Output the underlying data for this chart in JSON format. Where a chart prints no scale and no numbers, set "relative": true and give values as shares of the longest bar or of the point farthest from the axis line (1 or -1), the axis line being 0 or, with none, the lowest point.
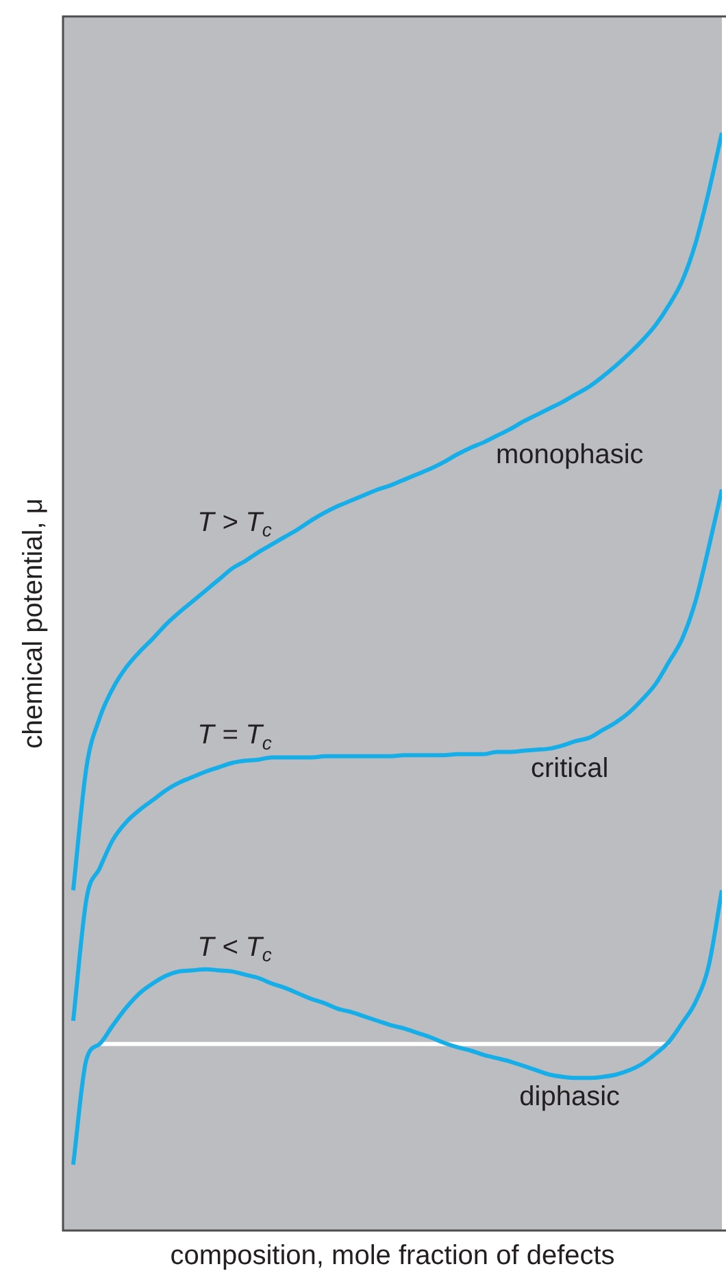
{
  "chart_data": {
    "type": "line",
    "xlabel": "composition, mole fraction of defects",
    "ylabel": "chemical potential, μ",
    "relative": true,
    "categories": [
      null,
      null,
      null,
      null,
      null,
      null,
      null,
      null,
      null,
      null,
      null,
      null,
      null,
      null,
      null,
      null,
      null,
      null,
      null,
      null,
      null,
      null,
      null,
      null,
      null,
      null,
      null,
      null,
      null,
      null,
      null,
      null,
      null,
      null,
      null,
      null,
      null,
      null,
      null,
      null,
      null,
      null,
      null,
      null,
      null,
      null,
      null,
      null,
      null,
      null
    ],
    "series": [
      {
        "name": "T > T$_{c}$",
        "color": "#16aee9",
        "values": [
          0.31,
          0.422,
          0.467,
          0.494,
          0.513,
          0.527,
          0.539,
          0.552,
          0.563,
          0.573,
          0.583,
          0.593,
          0.603,
          0.61,
          0.618,
          0.625,
          0.632,
          0.639,
          0.647,
          0.654,
          0.66,
          0.665,
          0.67,
          0.675,
          0.679,
          0.684,
          0.689,
          0.694,
          0.7,
          0.707,
          0.713,
          0.718,
          0.724,
          0.73,
          0.737,
          0.743,
          0.749,
          0.755,
          0.762,
          0.769,
          0.778,
          0.788,
          0.799,
          0.811,
          0.825,
          0.843,
          0.865,
          0.899,
          0.946,
          1
        ]
      },
      {
        "name": "T = T$_{c}$",
        "color": "#16aee9",
        "values": [
          0.191,
          0.302,
          0.33,
          0.356,
          0.372,
          0.383,
          0.392,
          0.401,
          0.408,
          0.413,
          0.418,
          0.422,
          0.426,
          0.428,
          0.429,
          0.431,
          0.431,
          0.431,
          0.431,
          0.432,
          0.432,
          0.432,
          0.432,
          0.432,
          0.432,
          0.433,
          0.433,
          0.433,
          0.433,
          0.434,
          0.434,
          0.434,
          0.436,
          0.436,
          0.437,
          0.438,
          0.439,
          0.442,
          0.446,
          0.449,
          0.456,
          0.463,
          0.472,
          0.484,
          0.498,
          0.518,
          0.539,
          0.573,
          0.622,
          0.675
        ]
      },
      {
        "name": "T < T$_{c}$",
        "color": "#16aee9",
        "values": [
          0.06,
          0.156,
          0.17,
          0.187,
          0.203,
          0.216,
          0.225,
          0.232,
          0.236,
          0.237,
          0.238,
          0.237,
          0.236,
          0.233,
          0.23,
          0.225,
          0.221,
          0.216,
          0.211,
          0.207,
          0.202,
          0.199,
          0.195,
          0.191,
          0.187,
          0.184,
          0.18,
          0.176,
          0.171,
          0.167,
          0.164,
          0.16,
          0.157,
          0.154,
          0.15,
          0.146,
          0.142,
          0.14,
          0.139,
          0.139,
          0.14,
          0.142,
          0.146,
          0.152,
          0.161,
          0.172,
          0.189,
          0.208,
          0.241,
          0.31
        ]
      },
      {
        "color": "#ffffff",
        "values": [
          null,
          null,
          0.17,
          0.17,
          0.17,
          0.17,
          0.17,
          0.17,
          0.17,
          0.17,
          0.17,
          0.17,
          0.17,
          0.17,
          0.17,
          0.17,
          0.17,
          0.17,
          0.17,
          0.17,
          0.17,
          0.17,
          0.17,
          0.17,
          0.17,
          0.17,
          0.17,
          0.17,
          0.17,
          0.17,
          0.17,
          0.17,
          0.17,
          0.17,
          0.17,
          0.17,
          0.17,
          0.17,
          0.17,
          0.17,
          0.17,
          0.17,
          0.17,
          0.17,
          0.17,
          0.17,
          null,
          null,
          null,
          null
        ]
      }
    ],
    "annotations": [
      "monophasic",
      "critical",
      "diphasic"
    ]
  }
}
